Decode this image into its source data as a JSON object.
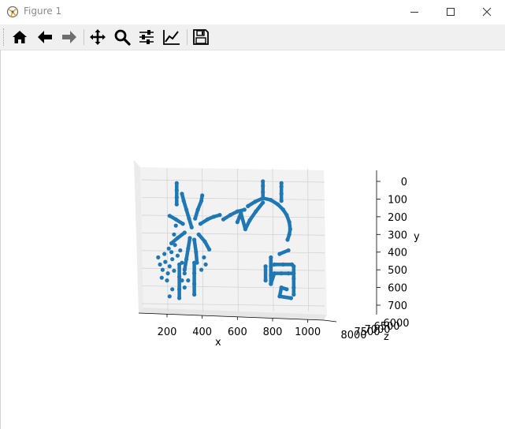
{
  "window": {
    "title": "Figure 1",
    "controls": [
      "minimize",
      "maximize",
      "close"
    ]
  },
  "toolbar": {
    "buttons": [
      {
        "name": "home",
        "icon": "home-icon"
      },
      {
        "name": "back",
        "icon": "arrow-left-icon"
      },
      {
        "name": "forward",
        "icon": "arrow-right-icon",
        "disabled": true
      },
      {
        "name": "pan",
        "icon": "move-icon"
      },
      {
        "name": "zoom",
        "icon": "magnifier-icon"
      },
      {
        "name": "subplots",
        "icon": "sliders-icon"
      },
      {
        "name": "customize",
        "icon": "line-chart-icon"
      },
      {
        "name": "save",
        "icon": "floppy-disk-icon"
      }
    ]
  },
  "colors": {
    "marker": "#1f77b4",
    "pane": "#f2f2f2",
    "grid": "#d0d0d0",
    "icon": "#000000"
  },
  "chart_data": {
    "type": "scatter",
    "projection": "3d",
    "xlabel": "x",
    "ylabel": "y",
    "zlabel": "z",
    "x_ticks": [
      "200",
      "400",
      "600",
      "800",
      "1000"
    ],
    "y_ticks": [
      "0",
      "100",
      "200",
      "300",
      "400",
      "500",
      "600",
      "700"
    ],
    "z_ticks": [
      "6000",
      "6500",
      "7000",
      "7500",
      "8000"
    ],
    "xlim": [
      100,
      1100
    ],
    "ylim": [
      0,
      700
    ],
    "grid": true,
    "series": [
      {
        "structure": "left-radial-hub",
        "points": [
          {
            "x": 340,
            "y": 260
          },
          {
            "x": 325,
            "y": 210
          },
          {
            "x": 310,
            "y": 160
          },
          {
            "x": 295,
            "y": 110
          },
          {
            "x": 285,
            "y": 70
          },
          {
            "x": 360,
            "y": 210
          },
          {
            "x": 375,
            "y": 160
          },
          {
            "x": 395,
            "y": 110
          },
          {
            "x": 400,
            "y": 80
          },
          {
            "x": 290,
            "y": 240
          },
          {
            "x": 250,
            "y": 215
          },
          {
            "x": 215,
            "y": 195
          },
          {
            "x": 390,
            "y": 240
          },
          {
            "x": 430,
            "y": 215
          },
          {
            "x": 465,
            "y": 200
          },
          {
            "x": 500,
            "y": 190
          },
          {
            "x": 300,
            "y": 290
          },
          {
            "x": 260,
            "y": 320
          },
          {
            "x": 225,
            "y": 350
          },
          {
            "x": 380,
            "y": 300
          },
          {
            "x": 415,
            "y": 340
          },
          {
            "x": 440,
            "y": 385
          },
          {
            "x": 330,
            "y": 320
          },
          {
            "x": 320,
            "y": 380
          },
          {
            "x": 310,
            "y": 440
          },
          {
            "x": 300,
            "y": 500
          },
          {
            "x": 355,
            "y": 330
          },
          {
            "x": 365,
            "y": 400
          },
          {
            "x": 370,
            "y": 460
          },
          {
            "x": 520,
            "y": 215
          },
          {
            "x": 560,
            "y": 190
          },
          {
            "x": 600,
            "y": 170
          },
          {
            "x": 640,
            "y": 160
          }
        ]
      },
      {
        "structure": "left-vertical-posts",
        "points": [
          {
            "x": 255,
            "y": 10
          },
          {
            "x": 255,
            "y": 50
          },
          {
            "x": 255,
            "y": 90
          },
          {
            "x": 255,
            "y": 130
          },
          {
            "x": 355,
            "y": 460
          },
          {
            "x": 355,
            "y": 520
          },
          {
            "x": 355,
            "y": 580
          },
          {
            "x": 355,
            "y": 640
          },
          {
            "x": 270,
            "y": 470
          },
          {
            "x": 270,
            "y": 540
          },
          {
            "x": 270,
            "y": 610
          },
          {
            "x": 270,
            "y": 660
          }
        ]
      },
      {
        "structure": "left-scatter-cluster",
        "points": [
          {
            "x": 150,
            "y": 430
          },
          {
            "x": 160,
            "y": 470
          },
          {
            "x": 175,
            "y": 500
          },
          {
            "x": 190,
            "y": 455
          },
          {
            "x": 205,
            "y": 520
          },
          {
            "x": 215,
            "y": 480
          },
          {
            "x": 230,
            "y": 440
          },
          {
            "x": 240,
            "y": 505
          },
          {
            "x": 170,
            "y": 545
          },
          {
            "x": 200,
            "y": 560
          },
          {
            "x": 225,
            "y": 400
          },
          {
            "x": 245,
            "y": 360
          },
          {
            "x": 260,
            "y": 420
          },
          {
            "x": 275,
            "y": 390
          },
          {
            "x": 210,
            "y": 380
          },
          {
            "x": 185,
            "y": 410
          },
          {
            "x": 285,
            "y": 560
          },
          {
            "x": 300,
            "y": 600
          },
          {
            "x": 230,
            "y": 610
          },
          {
            "x": 215,
            "y": 650
          },
          {
            "x": 320,
            "y": 560
          },
          {
            "x": 300,
            "y": 520
          },
          {
            "x": 285,
            "y": 460
          },
          {
            "x": 250,
            "y": 250
          },
          {
            "x": 240,
            "y": 300
          },
          {
            "x": 410,
            "y": 430
          },
          {
            "x": 420,
            "y": 470
          },
          {
            "x": 395,
            "y": 500
          }
        ]
      },
      {
        "structure": "right-arch",
        "points": [
          {
            "x": 660,
            "y": 140
          },
          {
            "x": 700,
            "y": 115
          },
          {
            "x": 745,
            "y": 95
          },
          {
            "x": 790,
            "y": 105
          },
          {
            "x": 830,
            "y": 130
          },
          {
            "x": 860,
            "y": 160
          },
          {
            "x": 880,
            "y": 190
          },
          {
            "x": 895,
            "y": 230
          },
          {
            "x": 900,
            "y": 270
          },
          {
            "x": 895,
            "y": 300
          },
          {
            "x": 885,
            "y": 330
          },
          {
            "x": 745,
            "y": 95
          },
          {
            "x": 745,
            "y": 60
          },
          {
            "x": 745,
            "y": 25
          },
          {
            "x": 745,
            "y": 0
          },
          {
            "x": 850,
            "y": 110
          },
          {
            "x": 850,
            "y": 70
          },
          {
            "x": 850,
            "y": 30
          },
          {
            "x": 850,
            "y": 10
          },
          {
            "x": 745,
            "y": 120
          },
          {
            "x": 705,
            "y": 170
          },
          {
            "x": 670,
            "y": 220
          },
          {
            "x": 645,
            "y": 270
          },
          {
            "x": 620,
            "y": 180
          },
          {
            "x": 600,
            "y": 230
          }
        ]
      },
      {
        "structure": "right-lower-frame",
        "points": [
          {
            "x": 790,
            "y": 430
          },
          {
            "x": 790,
            "y": 480
          },
          {
            "x": 790,
            "y": 530
          },
          {
            "x": 790,
            "y": 580
          },
          {
            "x": 810,
            "y": 520
          },
          {
            "x": 850,
            "y": 520
          },
          {
            "x": 890,
            "y": 520
          },
          {
            "x": 920,
            "y": 520
          },
          {
            "x": 810,
            "y": 470
          },
          {
            "x": 860,
            "y": 470
          },
          {
            "x": 910,
            "y": 470
          },
          {
            "x": 920,
            "y": 480
          },
          {
            "x": 920,
            "y": 550
          },
          {
            "x": 920,
            "y": 600
          },
          {
            "x": 920,
            "y": 640
          },
          {
            "x": 840,
            "y": 410
          },
          {
            "x": 890,
            "y": 390
          },
          {
            "x": 760,
            "y": 480
          },
          {
            "x": 760,
            "y": 560
          },
          {
            "x": 880,
            "y": 610
          },
          {
            "x": 850,
            "y": 600
          },
          {
            "x": 840,
            "y": 650
          },
          {
            "x": 905,
            "y": 660
          }
        ]
      }
    ]
  }
}
